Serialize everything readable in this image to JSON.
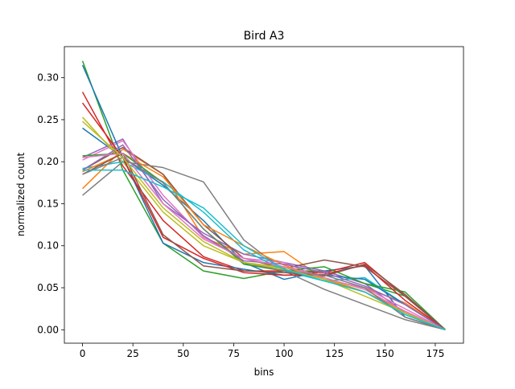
{
  "chart_data": {
    "type": "line",
    "title": "Bird A3",
    "xlabel": "bins",
    "ylabel": "normalized count",
    "xlim": [
      -9,
      189
    ],
    "ylim": [
      -0.016,
      0.337
    ],
    "xticks": [
      0,
      25,
      50,
      75,
      100,
      125,
      150,
      175
    ],
    "yticks": [
      0.0,
      0.05,
      0.1,
      0.15,
      0.2,
      0.25,
      0.3
    ],
    "ytick_labels": [
      "0.00",
      "0.05",
      "0.10",
      "0.15",
      "0.20",
      "0.25",
      "0.30"
    ],
    "grid": false,
    "x": [
      0,
      20,
      40,
      60,
      80,
      100,
      120,
      140,
      160,
      180
    ],
    "series": [
      {
        "color": "#1f77b4",
        "values": [
          0.24,
          0.205,
          0.172,
          0.13,
          0.08,
          0.06,
          0.07,
          0.076,
          0.015,
          0.0
        ]
      },
      {
        "color": "#ff7f0e",
        "values": [
          0.168,
          0.215,
          0.185,
          0.11,
          0.09,
          0.093,
          0.06,
          0.05,
          0.032,
          0.0
        ]
      },
      {
        "color": "#2ca02c",
        "values": [
          0.32,
          0.19,
          0.103,
          0.07,
          0.061,
          0.07,
          0.07,
          0.055,
          0.04,
          0.0
        ]
      },
      {
        "color": "#d62728",
        "values": [
          0.283,
          0.195,
          0.13,
          0.087,
          0.07,
          0.07,
          0.068,
          0.08,
          0.04,
          0.0
        ]
      },
      {
        "color": "#9467bd",
        "values": [
          0.205,
          0.227,
          0.15,
          0.115,
          0.09,
          0.08,
          0.07,
          0.055,
          0.02,
          0.0
        ]
      },
      {
        "color": "#8c564b",
        "values": [
          0.19,
          0.217,
          0.185,
          0.125,
          0.085,
          0.073,
          0.083,
          0.075,
          0.04,
          0.0
        ]
      },
      {
        "color": "#e377c2",
        "values": [
          0.202,
          0.225,
          0.16,
          0.11,
          0.085,
          0.08,
          0.06,
          0.05,
          0.025,
          0.0
        ]
      },
      {
        "color": "#7f7f7f",
        "values": [
          0.16,
          0.2,
          0.193,
          0.176,
          0.107,
          0.07,
          0.048,
          0.03,
          0.012,
          0.0
        ]
      },
      {
        "color": "#bcbd22",
        "values": [
          0.253,
          0.2,
          0.14,
          0.1,
          0.08,
          0.074,
          0.062,
          0.045,
          0.02,
          0.0
        ]
      },
      {
        "color": "#17becf",
        "values": [
          0.192,
          0.2,
          0.176,
          0.14,
          0.095,
          0.07,
          0.058,
          0.062,
          0.03,
          0.0
        ]
      },
      {
        "color": "#1f77b4",
        "values": [
          0.315,
          0.205,
          0.103,
          0.08,
          0.072,
          0.065,
          0.065,
          0.06,
          0.03,
          0.0
        ]
      },
      {
        "color": "#ff7f0e",
        "values": [
          0.188,
          0.21,
          0.182,
          0.125,
          0.1,
          0.077,
          0.06,
          0.045,
          0.022,
          0.0
        ]
      },
      {
        "color": "#2ca02c",
        "values": [
          0.207,
          0.21,
          0.175,
          0.12,
          0.078,
          0.07,
          0.075,
          0.055,
          0.045,
          0.0
        ]
      },
      {
        "color": "#d62728",
        "values": [
          0.27,
          0.205,
          0.11,
          0.085,
          0.068,
          0.065,
          0.066,
          0.077,
          0.035,
          0.0
        ]
      },
      {
        "color": "#9467bd",
        "values": [
          0.19,
          0.22,
          0.155,
          0.112,
          0.082,
          0.078,
          0.068,
          0.052,
          0.03,
          0.0
        ]
      },
      {
        "color": "#8c564b",
        "values": [
          0.185,
          0.21,
          0.113,
          0.076,
          0.07,
          0.068,
          0.064,
          0.078,
          0.042,
          0.0
        ]
      },
      {
        "color": "#e377c2",
        "values": [
          0.205,
          0.21,
          0.15,
          0.108,
          0.085,
          0.075,
          0.062,
          0.048,
          0.022,
          0.0
        ]
      },
      {
        "color": "#7f7f7f",
        "values": [
          0.185,
          0.205,
          0.175,
          0.12,
          0.08,
          0.07,
          0.065,
          0.05,
          0.015,
          0.0
        ]
      },
      {
        "color": "#bcbd22",
        "values": [
          0.248,
          0.205,
          0.145,
          0.105,
          0.08,
          0.072,
          0.06,
          0.04,
          0.02,
          0.0
        ]
      },
      {
        "color": "#17becf",
        "values": [
          0.19,
          0.19,
          0.17,
          0.145,
          0.1,
          0.072,
          0.058,
          0.045,
          0.018,
          0.0
        ]
      }
    ]
  }
}
